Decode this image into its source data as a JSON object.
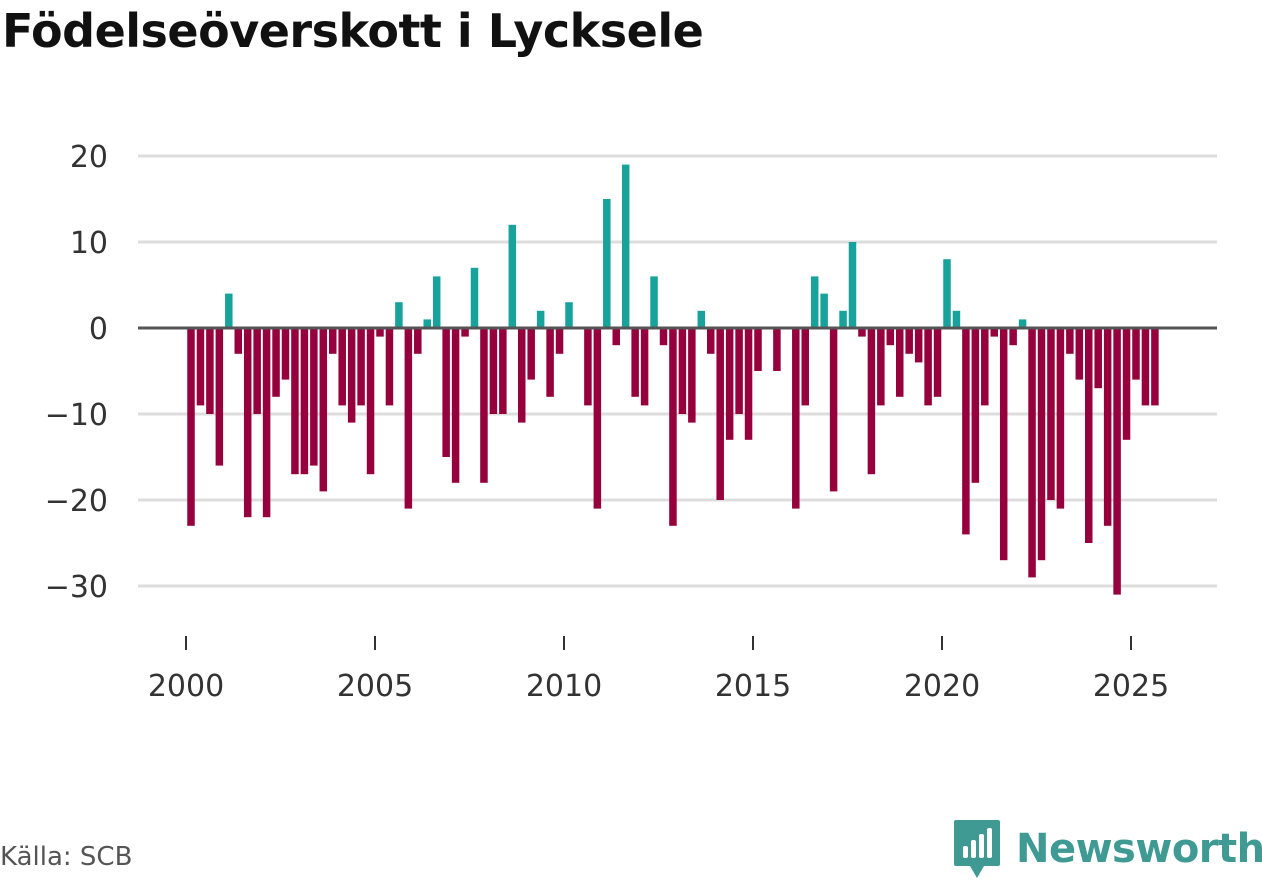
{
  "title": "Födelseöverskott i Lycksele",
  "source": "Källa: SCB",
  "brand": {
    "name": "Newsworthy",
    "color": "#3f9a94"
  },
  "colors": {
    "positive": "#17a39c",
    "negative": "#96003c",
    "grid": "#dddddd",
    "zero": "#555555"
  },
  "chart_data": {
    "type": "bar",
    "title": "Födelseöverskott i Lycksele",
    "xlabel": "",
    "ylabel": "",
    "ylim": [
      -35,
      22
    ],
    "yticks": [
      20,
      10,
      0,
      -10,
      -20,
      -30
    ],
    "ytick_labels": [
      "20",
      "10",
      "0",
      "−10",
      "−20",
      "−30"
    ],
    "xlim": [
      1999.5,
      2026.5
    ],
    "xticks": [
      2000,
      2005,
      2010,
      2015,
      2020,
      2025
    ],
    "xtick_labels": [
      "2000",
      "2005",
      "2010",
      "2015",
      "2020",
      "2025"
    ],
    "start": 2000.0,
    "step": 0.25,
    "values": [
      -23,
      -9,
      -10,
      -16,
      4,
      -3,
      -22,
      -10,
      -22,
      -8,
      -6,
      -17,
      -17,
      -16,
      -19,
      -3,
      -9,
      -11,
      -9,
      -17,
      -1,
      -9,
      3,
      -21,
      -3,
      1,
      6,
      -15,
      -18,
      -1,
      7,
      -18,
      -10,
      -10,
      12,
      -11,
      -6,
      2,
      -8,
      -3,
      3,
      0,
      -9,
      -21,
      15,
      -2,
      19,
      -8,
      -9,
      6,
      -2,
      -23,
      -10,
      -11,
      2,
      -3,
      -20,
      -13,
      -10,
      -13,
      -5,
      0,
      -5,
      0,
      -21,
      -9,
      6,
      4,
      -19,
      2,
      10,
      -1,
      -17,
      -9,
      -2,
      -8,
      -3,
      -4,
      -9,
      -8,
      8,
      2,
      -24,
      -18,
      -9,
      -1,
      -27,
      -2,
      1,
      -29,
      -27,
      -20,
      -21,
      -3,
      -6,
      -25,
      -7,
      -23,
      -31,
      -13,
      -6,
      -9,
      -9
    ]
  }
}
